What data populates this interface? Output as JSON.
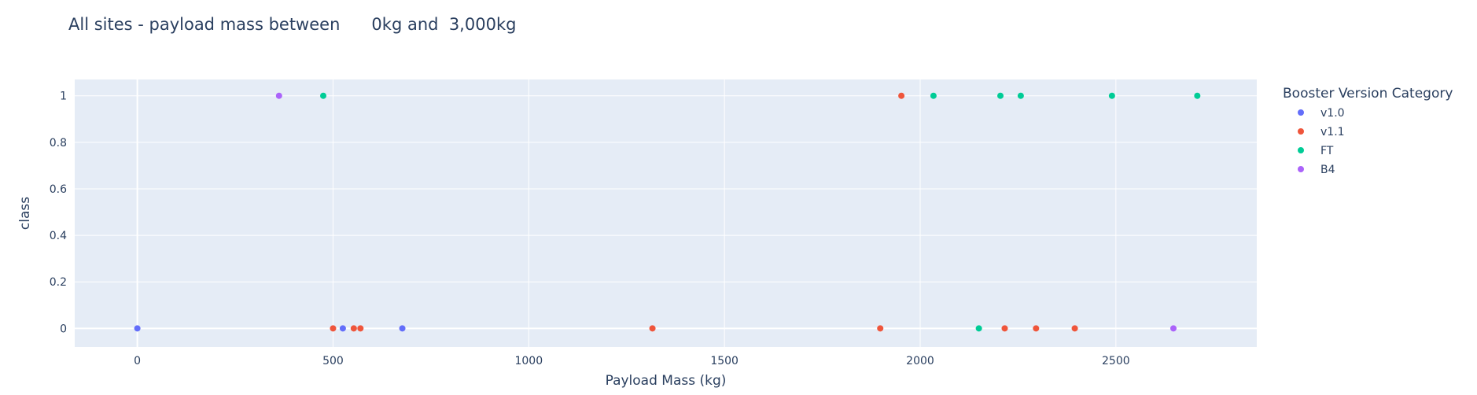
{
  "chart_data": {
    "type": "scatter",
    "title": "All sites - payload mass between      0kg and  3,000kg",
    "xlabel": "Payload Mass (kg)",
    "ylabel": "class",
    "xlim": [
      -160,
      2860
    ],
    "ylim": [
      -0.08,
      1.07
    ],
    "xticks": [
      0,
      500,
      1000,
      1500,
      2000,
      2500
    ],
    "yticks": [
      0,
      0.2,
      0.4,
      0.6,
      0.8,
      1
    ],
    "grid": true,
    "legend_title": "Booster Version Category",
    "legend_position": "right",
    "series": [
      {
        "name": "v1.0",
        "color": "#636efa",
        "points": [
          [
            0,
            0
          ],
          [
            525,
            0
          ],
          [
            677,
            0
          ]
        ]
      },
      {
        "name": "v1.1",
        "color": "#ef553b",
        "points": [
          [
            500,
            0
          ],
          [
            553,
            0
          ],
          [
            570,
            0
          ],
          [
            1316,
            0
          ],
          [
            1898,
            0
          ],
          [
            1952,
            1
          ],
          [
            2216,
            0
          ],
          [
            2296,
            0
          ],
          [
            2395,
            0
          ]
        ]
      },
      {
        "name": "FT",
        "color": "#00cc96",
        "points": [
          [
            475,
            1
          ],
          [
            2034,
            1
          ],
          [
            2150,
            0
          ],
          [
            2205,
            1
          ],
          [
            2257,
            1
          ],
          [
            2490,
            1
          ],
          [
            2708,
            1
          ]
        ]
      },
      {
        "name": "B4",
        "color": "#ab63fa",
        "points": [
          [
            362,
            1
          ],
          [
            2647,
            0
          ]
        ]
      }
    ]
  }
}
